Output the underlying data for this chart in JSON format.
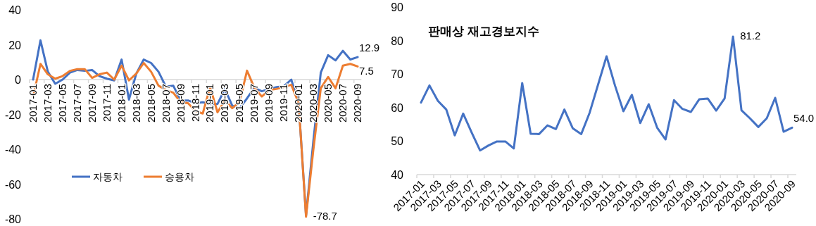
{
  "chart_data": [
    {
      "type": "line",
      "categories": [
        "2017-01",
        null,
        "2017-03",
        null,
        "2017-05",
        null,
        "2017-07",
        null,
        "2017-09",
        null,
        "2017-11",
        null,
        "2018-01",
        null,
        "2018-03",
        null,
        "2018-05",
        null,
        "2018-07",
        null,
        "2018-09",
        null,
        "2018-11",
        null,
        "2019-01",
        null,
        "2019-03",
        null,
        "2019-05",
        null,
        "2019-07",
        null,
        "2019-09",
        null,
        "2019-11",
        null,
        "2020-01",
        null,
        "2020-03",
        null,
        "2020-05",
        null,
        "2020-07",
        null,
        "2020-09"
      ],
      "series": [
        {
          "name": "자동차",
          "color": "#4472c4",
          "values": [
            0,
            22.5,
            4.5,
            -2.4,
            0,
            4,
            5.5,
            5,
            5.5,
            2,
            0.5,
            -0.5,
            11.5,
            -11.5,
            3.5,
            11.5,
            9.5,
            4.5,
            -4,
            -3.5,
            -12,
            -12,
            -13.5,
            -13,
            -14,
            -14,
            -5.4,
            -15,
            -16.4,
            -10.8,
            -4.7,
            -6.7,
            -5.4,
            -4.3,
            -3.8,
            0,
            -13.5,
            -78,
            -35,
            4,
            14,
            11,
            16.5,
            11.5,
            12.9
          ],
          "value_labels": [
            null,
            null,
            null,
            null,
            null,
            null,
            null,
            null,
            null,
            null,
            null,
            null,
            null,
            null,
            null,
            null,
            null,
            null,
            null,
            null,
            null,
            null,
            null,
            null,
            null,
            null,
            null,
            null,
            null,
            null,
            null,
            null,
            null,
            null,
            null,
            null,
            null,
            null,
            null,
            null,
            null,
            null,
            null,
            null,
            "12.9"
          ]
        },
        {
          "name": "승용차",
          "color": "#ed7d31",
          "values": [
            -10,
            9,
            3,
            0.5,
            2,
            5,
            6,
            6,
            1,
            3,
            4,
            0,
            8,
            -0.5,
            3.5,
            9.5,
            4.5,
            -3.5,
            -6,
            -7.5,
            -13,
            -13.5,
            -18,
            -19.5,
            -4.3,
            -18.8,
            -12,
            -16.4,
            -12.8,
            5.1,
            -4.7,
            -9.7,
            -6,
            -5.4,
            -4.3,
            -3,
            -13.5,
            -78.7,
            -40,
            -5,
            1.5,
            -5,
            8,
            9,
            7.5
          ],
          "value_labels": [
            null,
            null,
            null,
            null,
            null,
            null,
            null,
            null,
            null,
            null,
            null,
            null,
            null,
            null,
            null,
            null,
            null,
            null,
            null,
            null,
            null,
            null,
            null,
            null,
            null,
            null,
            null,
            null,
            null,
            null,
            null,
            null,
            null,
            null,
            null,
            null,
            null,
            "-78.7",
            null,
            null,
            null,
            null,
            null,
            null,
            "7.5"
          ]
        }
      ],
      "ylim": [
        -80,
        40
      ],
      "yticks": [
        -80,
        -60,
        -40,
        -20,
        0,
        20,
        40
      ],
      "legend": "bottom left",
      "grid": false
    },
    {
      "type": "line",
      "title": "판매상 재고경보지수",
      "categories": [
        "2017-01",
        null,
        "2017-03",
        null,
        "2017-05",
        null,
        "2017-07",
        null,
        "2017-09",
        null,
        "2017-11",
        null,
        "2018-01",
        null,
        "2018-03",
        null,
        "2018-05",
        null,
        "2018-07",
        null,
        "2018-09",
        null,
        "2018-11",
        null,
        "2019-01",
        null,
        "2019-03",
        null,
        "2019-05",
        null,
        "2019-07",
        null,
        "2019-09",
        null,
        "2019-11",
        null,
        "2020-01",
        null,
        "2020-03",
        null,
        "2020-05",
        null,
        "2020-07",
        null,
        "2020-09"
      ],
      "series": [
        {
          "color": "#4472c4",
          "values": [
            61.5,
            66.6,
            62,
            59.4,
            51.7,
            58.2,
            52.6,
            47.2,
            48.7,
            49.9,
            49.9,
            47.8,
            67.3,
            52.2,
            52.1,
            54.7,
            53.6,
            59.4,
            53.8,
            52.1,
            58.5,
            66.9,
            75.3,
            66.6,
            58.9,
            63.8,
            55.4,
            61,
            54,
            50.5,
            62.2,
            59.6,
            58.7,
            62.5,
            62.7,
            59.1,
            62.7,
            81.2,
            59.2,
            56.8,
            54.2,
            56.8,
            62.9,
            52.8,
            54.0
          ],
          "value_labels": [
            null,
            null,
            null,
            null,
            null,
            null,
            null,
            null,
            null,
            null,
            null,
            null,
            null,
            null,
            null,
            null,
            null,
            null,
            null,
            null,
            null,
            null,
            null,
            null,
            null,
            null,
            null,
            null,
            null,
            null,
            null,
            null,
            null,
            null,
            null,
            null,
            null,
            "81.2",
            null,
            null,
            null,
            null,
            null,
            null,
            "54.0"
          ]
        }
      ],
      "ylim": [
        40,
        90
      ],
      "yticks": [
        40,
        50,
        60,
        70,
        80,
        90
      ],
      "grid": false
    }
  ]
}
